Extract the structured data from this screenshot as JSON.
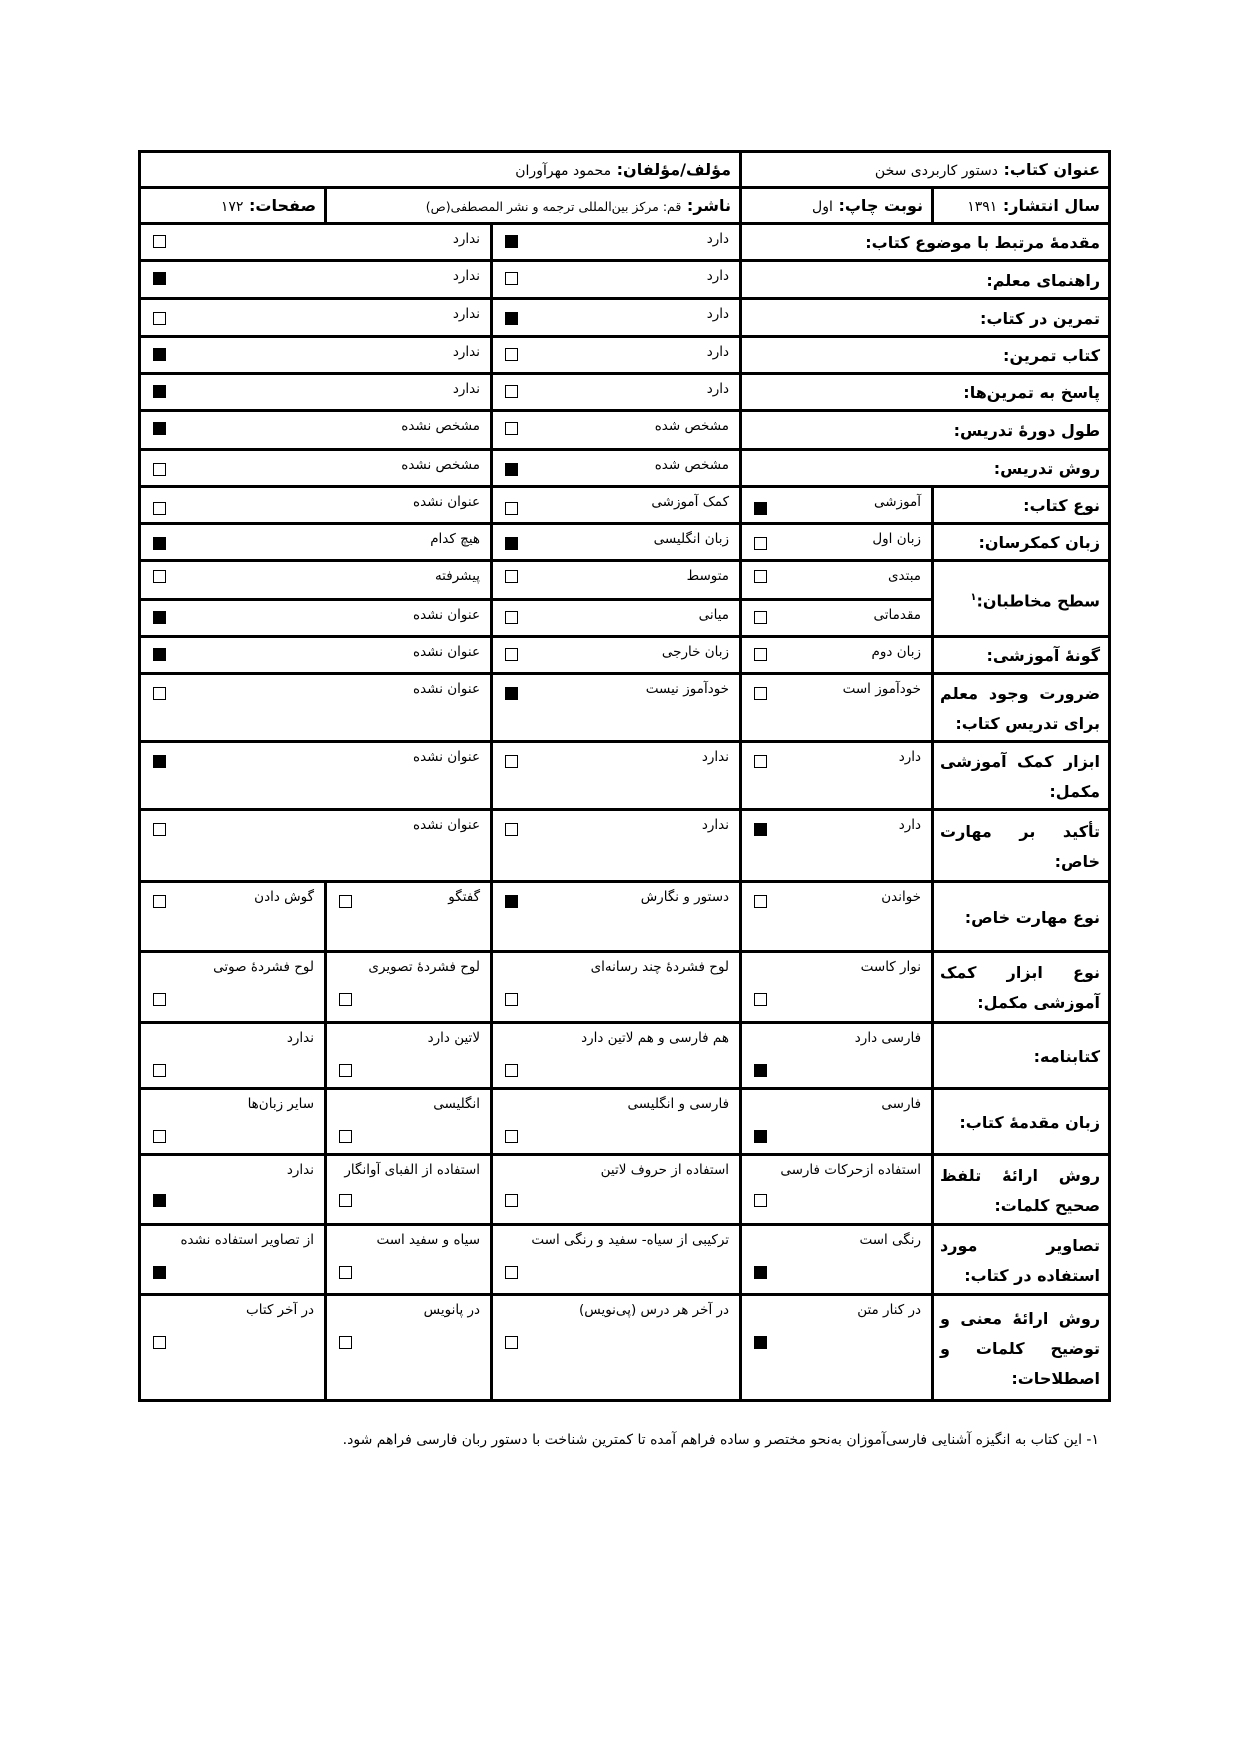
{
  "header": {
    "title_label": "عنوان کتاب:",
    "title_value": "دستور کاربردی سخن",
    "author_label": "مؤلف/مؤلفان:",
    "author_value": "محمود مهرآوران",
    "year_label": "سال انتشار:",
    "year_value": "۱۳۹۱",
    "edition_label": "نوبت چاپ:",
    "edition_value": "اول",
    "publisher_label": "ناشر:",
    "publisher_value": "قم: مرکز بین‌المللی ترجمه و نشر المصطفی(ص)",
    "pages_label": "صفحات:",
    "pages_value": "۱۷۲"
  },
  "rows": [
    {
      "label": "مقدمهٔ مرتبط با موضوع کتاب:",
      "layout": "binary",
      "options": [
        {
          "text": "دارد",
          "checked": true
        },
        {
          "text": "ندارد",
          "checked": false
        }
      ]
    },
    {
      "label": "راهنمای معلم:",
      "layout": "binary",
      "options": [
        {
          "text": "دارد",
          "checked": false
        },
        {
          "text": "ندارد",
          "checked": true
        }
      ]
    },
    {
      "label": "تمرین در کتاب:",
      "layout": "binary",
      "options": [
        {
          "text": "دارد",
          "checked": true
        },
        {
          "text": "ندارد",
          "checked": false
        }
      ]
    },
    {
      "label": "کتاب تمرین:",
      "layout": "binary",
      "options": [
        {
          "text": "دارد",
          "checked": false
        },
        {
          "text": "ندارد",
          "checked": true
        }
      ]
    },
    {
      "label": "پاسخ به تمرین‌ها:",
      "layout": "binary",
      "options": [
        {
          "text": "دارد",
          "checked": false
        },
        {
          "text": "ندارد",
          "checked": true
        }
      ]
    },
    {
      "label": "طول دورهٔ تدریس:",
      "layout": "binary",
      "options": [
        {
          "text": "مشخص شده",
          "checked": false
        },
        {
          "text": "مشخص نشده",
          "checked": true
        }
      ]
    },
    {
      "label": "روش تدریس:",
      "layout": "binary",
      "options": [
        {
          "text": "مشخص شده",
          "checked": true
        },
        {
          "text": "مشخص نشده",
          "checked": false
        }
      ]
    },
    {
      "label": "نوع کتاب:",
      "layout": "three",
      "options": [
        {
          "text": "آموزشی",
          "checked": true
        },
        {
          "text": "کمک آموزشی",
          "checked": false
        },
        {
          "text": "عنوان نشده",
          "checked": false
        }
      ]
    },
    {
      "label": "زبان کمکرسان:",
      "layout": "three",
      "options": [
        {
          "text": "زبان اول",
          "checked": false
        },
        {
          "text": "زبان انگلیسی",
          "checked": true
        },
        {
          "text": "هیچ کدام",
          "checked": true
        }
      ]
    },
    {
      "label": "سطح مخاطبان:",
      "footnote_ref": "۱",
      "layout": "three",
      "rowspan": 2,
      "options": [
        {
          "text": "مبتدی",
          "checked": false
        },
        {
          "text": "متوسط",
          "checked": false
        },
        {
          "text": "پیشرفته",
          "checked": false
        }
      ]
    },
    {
      "label": "",
      "layout": "three",
      "continuation": true,
      "options": [
        {
          "text": "مقدماتی",
          "checked": false
        },
        {
          "text": "میانی",
          "checked": false
        },
        {
          "text": "عنوان نشده",
          "checked": true
        }
      ]
    },
    {
      "label": "گونهٔ آموزشی:",
      "layout": "three",
      "options": [
        {
          "text": "زبان دوم",
          "checked": false
        },
        {
          "text": "زبان خارجی",
          "checked": false
        },
        {
          "text": "عنوان نشده",
          "checked": true
        }
      ]
    },
    {
      "label": "ضرورت وجود معلم برای تدریس کتاب:",
      "layout": "three",
      "options": [
        {
          "text": "خودآموز است",
          "checked": false
        },
        {
          "text": "خودآموز نیست",
          "checked": true
        },
        {
          "text": "عنوان نشده",
          "checked": false
        }
      ]
    },
    {
      "label": "ابزار کمک آموزشی مکمل:",
      "layout": "three",
      "options": [
        {
          "text": "دارد",
          "checked": false
        },
        {
          "text": "ندارد",
          "checked": false
        },
        {
          "text": "عنوان نشده",
          "checked": true
        }
      ]
    },
    {
      "label": "تأکید بر مهارت خاص:",
      "layout": "three",
      "options": [
        {
          "text": "دارد",
          "checked": true
        },
        {
          "text": "ندارد",
          "checked": false
        },
        {
          "text": "عنوان نشده",
          "checked": false
        }
      ]
    },
    {
      "label": "نوع مهارت خاص:",
      "layout": "four",
      "options": [
        {
          "text": "خواندن",
          "checked": false
        },
        {
          "text": "دستور و نگارش",
          "checked": true
        },
        {
          "text": "گفتگو",
          "checked": false
        },
        {
          "text": "گوش دادن",
          "checked": false
        }
      ]
    },
    {
      "label": "نوع ابزار کمک آموزشی مکمل:",
      "layout": "four",
      "options": [
        {
          "text": "نوار کاست",
          "checked": false
        },
        {
          "text": "لوح فشردهٔ چند رسانه‌ای",
          "checked": false
        },
        {
          "text": "لوح فشردهٔ تصویری",
          "checked": false
        },
        {
          "text": "لوح فشردهٔ صوتی",
          "checked": false
        }
      ]
    },
    {
      "label": "کتابنامه:",
      "layout": "four",
      "options": [
        {
          "text": "فارسی دارد",
          "checked": true
        },
        {
          "text": "هم فارسی و هم لاتین دارد",
          "checked": false
        },
        {
          "text": "لاتین دارد",
          "checked": false
        },
        {
          "text": "ندارد",
          "checked": false
        }
      ]
    },
    {
      "label": "زبان مقدمهٔ کتاب:",
      "layout": "four",
      "options": [
        {
          "text": "فارسی",
          "checked": true
        },
        {
          "text": "فارسی و انگلیسی",
          "checked": false
        },
        {
          "text": "انگلیسی",
          "checked": false
        },
        {
          "text": "سایر زبان‌ها",
          "checked": false
        }
      ]
    },
    {
      "label": "روش ارائهٔ تلفظ صحیح کلمات:",
      "layout": "four",
      "options": [
        {
          "text": "استفاده ازحرکات فارسی",
          "checked": false
        },
        {
          "text": "استفاده از حروف لاتین",
          "checked": false
        },
        {
          "text": "استفاده از الفبای آوانگار",
          "checked": false
        },
        {
          "text": "ندارد",
          "checked": true
        }
      ]
    },
    {
      "label": "تصاویر مورد استفاده در کتاب:",
      "layout": "four",
      "options": [
        {
          "text": "رنگی است",
          "checked": true
        },
        {
          "text": "ترکیبی از سیاه- سفید و رنگی است",
          "checked": false
        },
        {
          "text": "سیاه و سفید است",
          "checked": false
        },
        {
          "text": "از تصاویر استفاده نشده",
          "checked": true
        }
      ]
    },
    {
      "label": "روش ارائهٔ معنی و توضیح کلمات و اصطلاحات:",
      "layout": "four",
      "options": [
        {
          "text": "در کنار متن",
          "checked": true
        },
        {
          "text": "در آخر هر درس (پی‌نویس)",
          "checked": false
        },
        {
          "text": "در پانویس",
          "checked": false
        },
        {
          "text": "در آخر کتاب",
          "checked": false
        }
      ]
    }
  ],
  "footnote": "۱-   این کتاب به انگیزه آشنایی فارسی‌آموزان به‌نحو مختصر و ساده فراهم آمده تا کمترین شناخت با دستور ربان فارسی فراهم شود."
}
